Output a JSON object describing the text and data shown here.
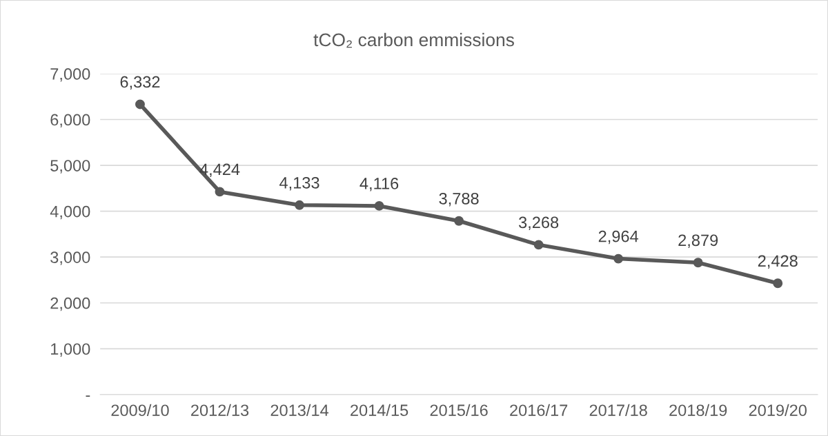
{
  "chart_data": {
    "type": "line",
    "title": "tCO₂ carbon emmissions",
    "categories": [
      "2009/10",
      "2012/13",
      "2013/14",
      "2014/15",
      "2015/16",
      "2016/17",
      "2017/18",
      "2018/19",
      "2019/20"
    ],
    "series": [
      {
        "color": "#595959",
        "values": [
          6332,
          4424,
          4133,
          4116,
          3788,
          3268,
          2964,
          2879,
          2428
        ],
        "value_labels": [
          "6,332",
          "4,424",
          "4,133",
          "4,116",
          "3,788",
          "3,268",
          "2,964",
          "2,879",
          "2,428"
        ]
      }
    ],
    "ylim": [
      0,
      7000
    ],
    "yticks": [
      {
        "value": 0,
        "label": "-"
      },
      {
        "value": 1000,
        "label": "1,000"
      },
      {
        "value": 2000,
        "label": "2,000"
      },
      {
        "value": 3000,
        "label": "3,000"
      },
      {
        "value": 4000,
        "label": "4,000"
      },
      {
        "value": 5000,
        "label": "5,000"
      },
      {
        "value": 6000,
        "label": "6,000"
      },
      {
        "value": 7000,
        "label": "7,000"
      }
    ],
    "grid": "y",
    "marker": "circle",
    "line_style": "solid"
  }
}
